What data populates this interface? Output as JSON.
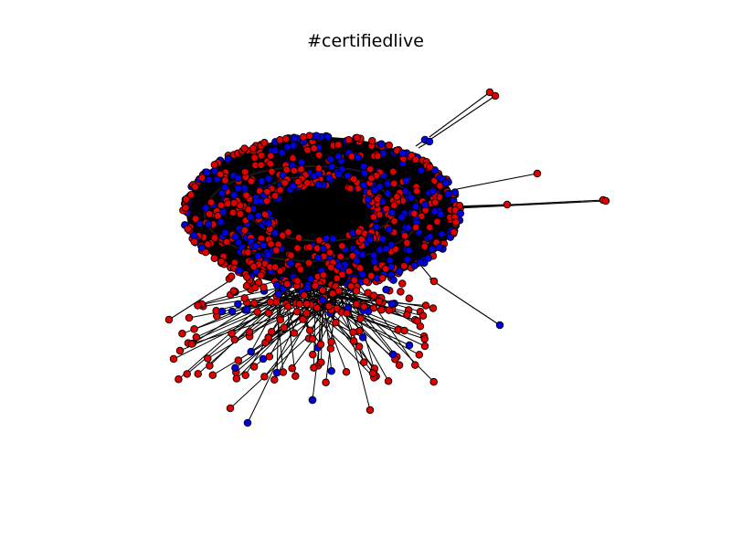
{
  "figure": {
    "title": "#certifiedlive",
    "node_colors": {
      "group_a": "#e00000",
      "group_b": "#0000e0"
    },
    "edge_color": "#000000",
    "node_outline": "#000000",
    "background": "#ffffff"
  }
}
